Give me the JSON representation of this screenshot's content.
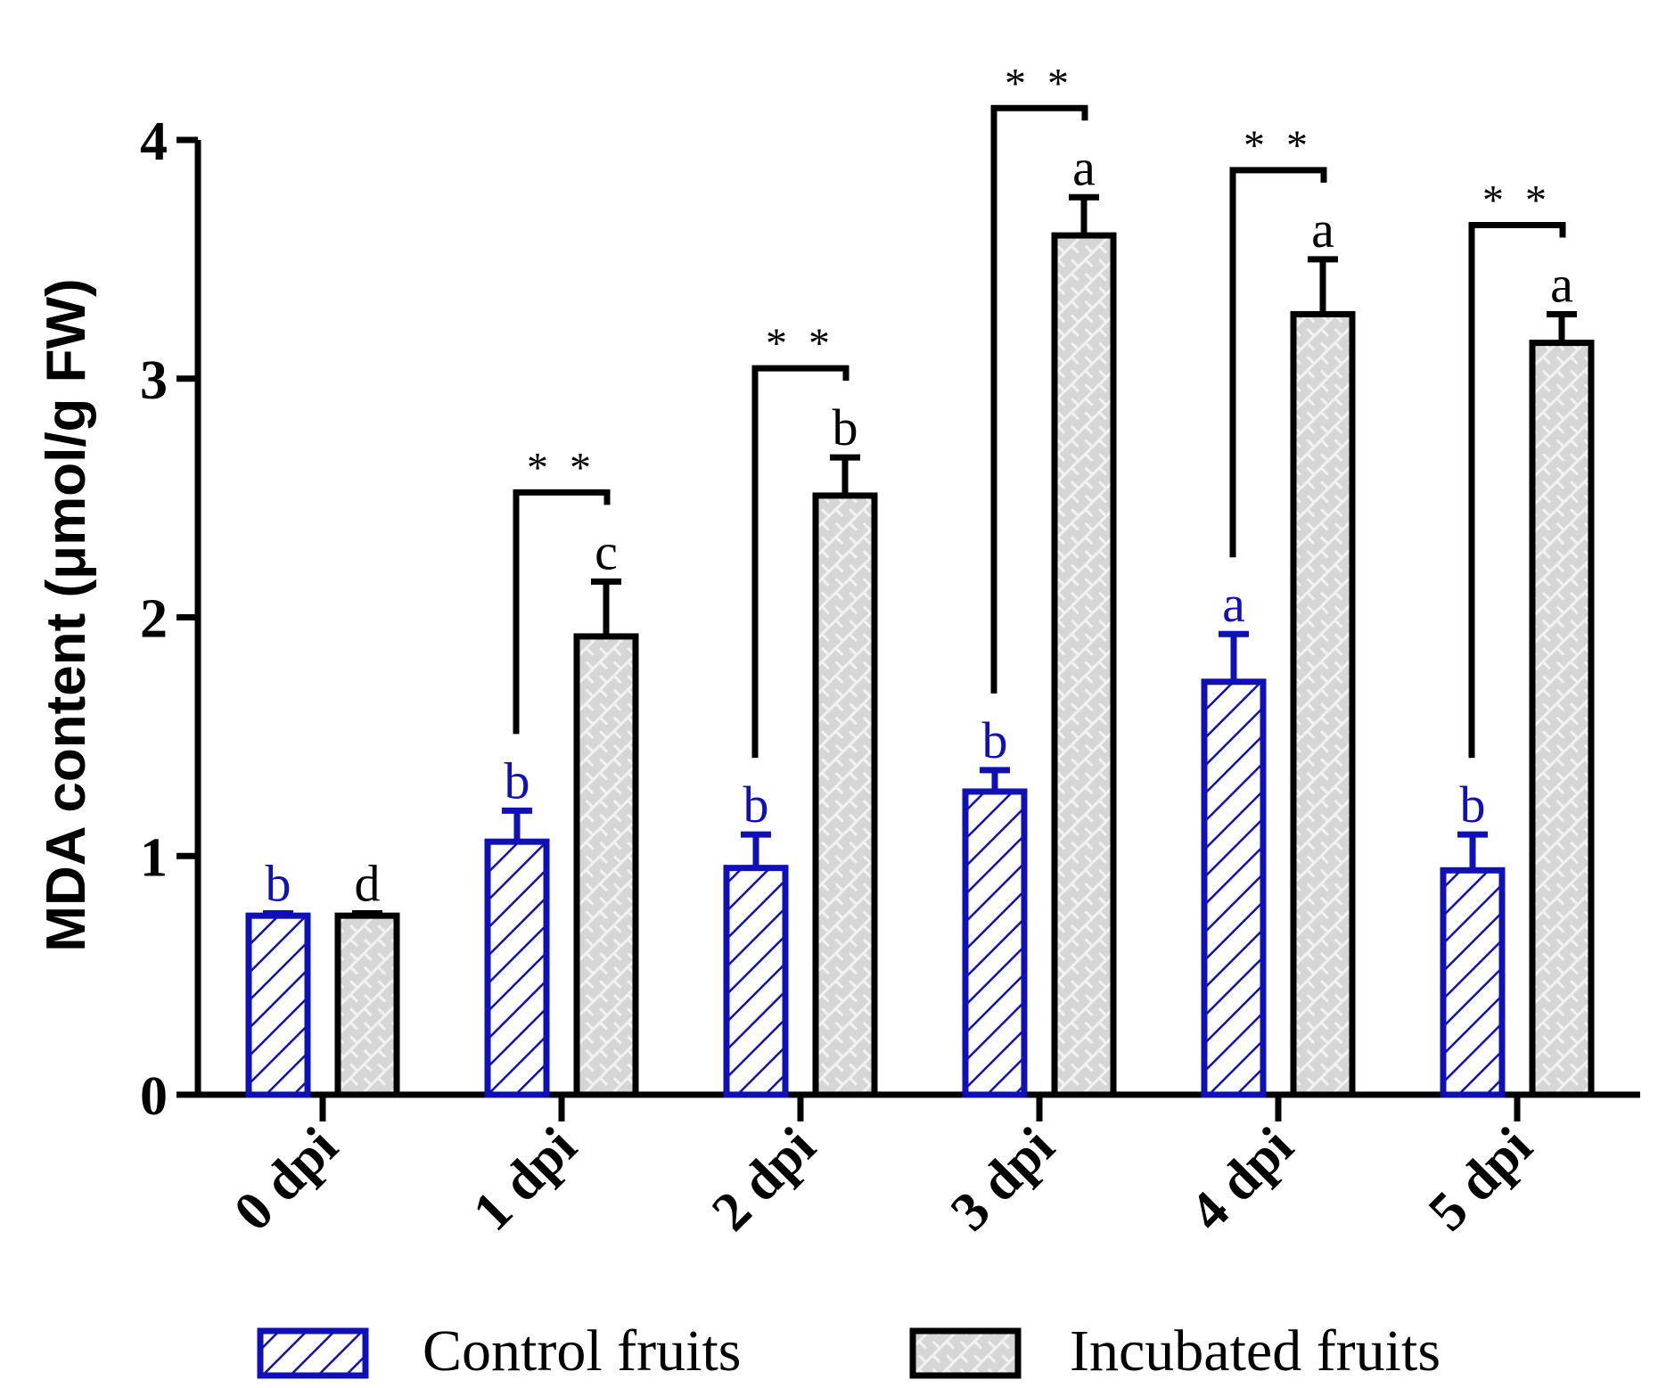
{
  "chart_data": {
    "type": "bar",
    "title": "",
    "xlabel": "",
    "ylabel": "MDA content (μmol/g FW)",
    "ylim": [
      0,
      4
    ],
    "yticks": [
      "0",
      "1",
      "2",
      "3",
      "4"
    ],
    "categories": [
      "0 dpi",
      "1 dpi",
      "2 dpi",
      "3 dpi",
      "4 dpi",
      "5 dpi"
    ],
    "series": [
      {
        "name": "Control fruits",
        "values": [
          0.75,
          1.06,
          0.95,
          1.27,
          1.73,
          0.94
        ],
        "errors": [
          0.01,
          0.13,
          0.14,
          0.09,
          0.2,
          0.15
        ],
        "letters": [
          "b",
          "b",
          "b",
          "b",
          "a",
          "b"
        ],
        "color": "#1010b8",
        "fill": "#ffffff",
        "pattern": "diagonal-hatch"
      },
      {
        "name": "Incubated fruits",
        "values": [
          0.75,
          1.92,
          2.51,
          3.6,
          3.27,
          3.15
        ],
        "errors": [
          0.01,
          0.23,
          0.16,
          0.16,
          0.23,
          0.12
        ],
        "letters": [
          "d",
          "c",
          "b",
          "a",
          "a",
          "a"
        ],
        "color": "#000000",
        "fill": "#d8d8d8",
        "pattern": "brick"
      }
    ],
    "significance": [
      "",
      "* *",
      "* *",
      "* *",
      "* *",
      "* *"
    ],
    "legend": {
      "position": "bottom",
      "entries": [
        "Control fruits",
        "Incubated fruits"
      ]
    }
  }
}
